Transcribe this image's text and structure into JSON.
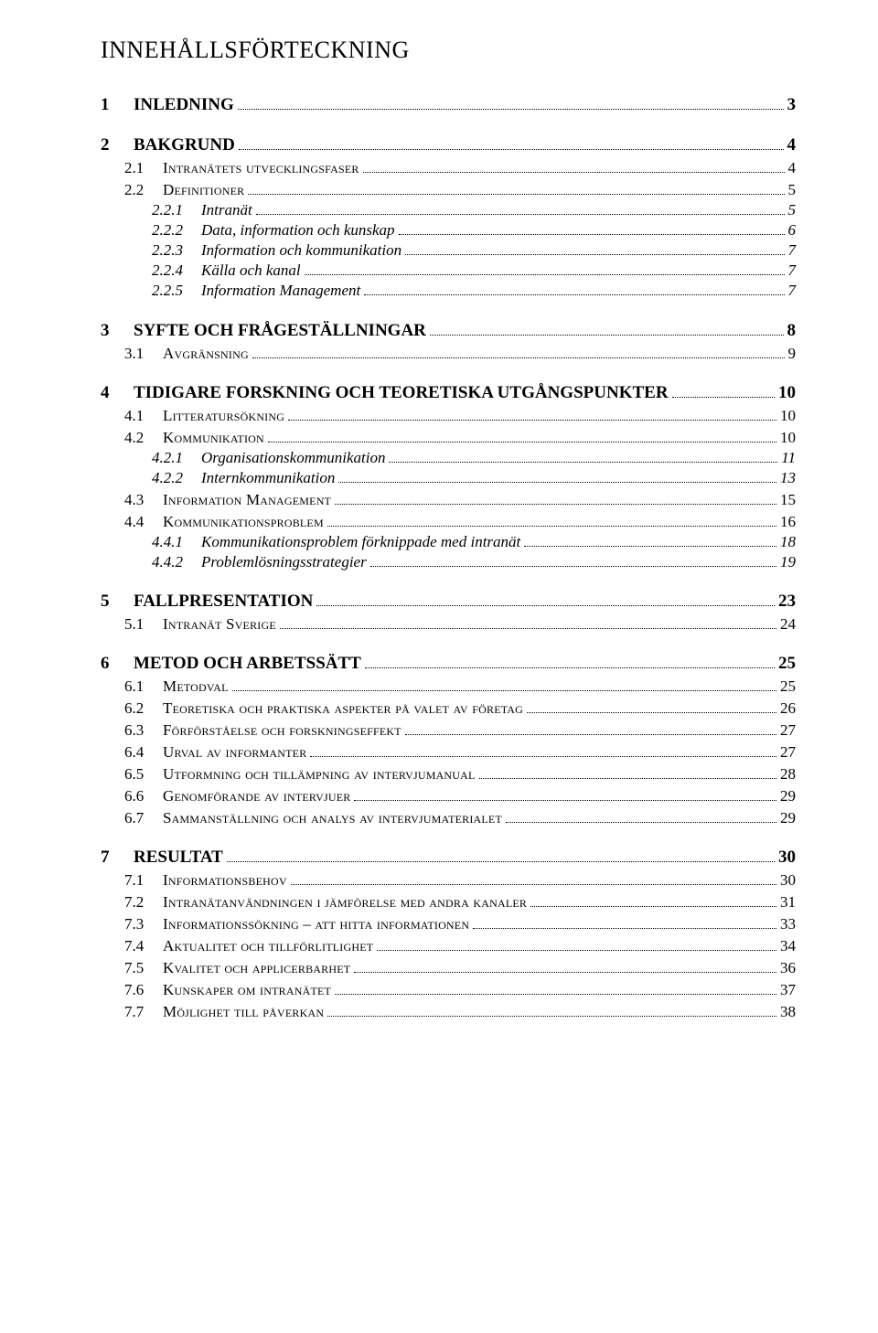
{
  "title": "INNEHÅLLSFÖRTECKNING",
  "toc": [
    {
      "level": 1,
      "num": "1",
      "label": "INLEDNING",
      "page": "3",
      "sc": false
    },
    {
      "level": 1,
      "num": "2",
      "label": "BAKGRUND",
      "page": "4",
      "sc": false
    },
    {
      "level": 2,
      "num": "2.1",
      "label": "Intranätets utvecklingsfaser",
      "page": "4",
      "sc": true
    },
    {
      "level": 2,
      "num": "2.2",
      "label": "Definitioner",
      "page": "5",
      "sc": true
    },
    {
      "level": 3,
      "num": "2.2.1",
      "label": "Intranät",
      "page": "5",
      "sc": false
    },
    {
      "level": 3,
      "num": "2.2.2",
      "label": "Data, information och kunskap",
      "page": "6",
      "sc": false
    },
    {
      "level": 3,
      "num": "2.2.3",
      "label": "Information och kommunikation",
      "page": "7",
      "sc": false
    },
    {
      "level": 3,
      "num": "2.2.4",
      "label": "Källa och kanal",
      "page": "7",
      "sc": false
    },
    {
      "level": 3,
      "num": "2.2.5",
      "label": "Information Management",
      "page": "7",
      "sc": false
    },
    {
      "level": 1,
      "num": "3",
      "label": "SYFTE OCH FRÅGESTÄLLNINGAR",
      "page": "8",
      "sc": false
    },
    {
      "level": 2,
      "num": "3.1",
      "label": "Avgränsning",
      "page": "9",
      "sc": true
    },
    {
      "level": 1,
      "num": "4",
      "label": "TIDIGARE FORSKNING OCH TEORETISKA UTGÅNGSPUNKTER",
      "page": "10",
      "sc": false
    },
    {
      "level": 2,
      "num": "4.1",
      "label": "Litteratursökning",
      "page": "10",
      "sc": true
    },
    {
      "level": 2,
      "num": "4.2",
      "label": "Kommunikation",
      "page": "10",
      "sc": true
    },
    {
      "level": 3,
      "num": "4.2.1",
      "label": "Organisationskommunikation",
      "page": "11",
      "sc": false
    },
    {
      "level": 3,
      "num": "4.2.2",
      "label": "Internkommunikation",
      "page": "13",
      "sc": false
    },
    {
      "level": 2,
      "num": "4.3",
      "label": "Information Management",
      "page": "15",
      "sc": true
    },
    {
      "level": 2,
      "num": "4.4",
      "label": "Kommunikationsproblem",
      "page": "16",
      "sc": true
    },
    {
      "level": 3,
      "num": "4.4.1",
      "label": "Kommunikationsproblem förknippade med intranät",
      "page": "18",
      "sc": false
    },
    {
      "level": 3,
      "num": "4.4.2",
      "label": "Problemlösningsstrategier",
      "page": "19",
      "sc": false
    },
    {
      "level": 1,
      "num": "5",
      "label": "FALLPRESENTATION",
      "page": "23",
      "sc": false
    },
    {
      "level": 2,
      "num": "5.1",
      "label": "Intranät Sverige",
      "page": "24",
      "sc": true
    },
    {
      "level": 1,
      "num": "6",
      "label": "METOD OCH ARBETSSÄTT",
      "page": "25",
      "sc": false
    },
    {
      "level": 2,
      "num": "6.1",
      "label": "Metodval",
      "page": "25",
      "sc": true
    },
    {
      "level": 2,
      "num": "6.2",
      "label": "Teoretiska och praktiska aspekter på valet av företag",
      "page": "26",
      "sc": true
    },
    {
      "level": 2,
      "num": "6.3",
      "label": "Förförståelse och forskningseffekt",
      "page": "27",
      "sc": true
    },
    {
      "level": 2,
      "num": "6.4",
      "label": "Urval av informanter",
      "page": "27",
      "sc": true
    },
    {
      "level": 2,
      "num": "6.5",
      "label": "Utformning och tillämpning av intervjumanual",
      "page": "28",
      "sc": true
    },
    {
      "level": 2,
      "num": "6.6",
      "label": "Genomförande av intervjuer",
      "page": "29",
      "sc": true
    },
    {
      "level": 2,
      "num": "6.7",
      "label": "Sammanställning och analys av intervjumaterialet",
      "page": "29",
      "sc": true
    },
    {
      "level": 1,
      "num": "7",
      "label": "RESULTAT",
      "page": "30",
      "sc": false
    },
    {
      "level": 2,
      "num": "7.1",
      "label": "Informationsbehov",
      "page": "30",
      "sc": true
    },
    {
      "level": 2,
      "num": "7.2",
      "label": "Intranätanvändningen i jämförelse med andra kanaler",
      "page": "31",
      "sc": true
    },
    {
      "level": 2,
      "num": "7.3",
      "label": "Informationssökning – att hitta informationen",
      "page": "33",
      "sc": true
    },
    {
      "level": 2,
      "num": "7.4",
      "label": "Aktualitet och tillförlitlighet",
      "page": "34",
      "sc": true
    },
    {
      "level": 2,
      "num": "7.5",
      "label": "Kvalitet och applicerbarhet",
      "page": "36",
      "sc": true
    },
    {
      "level": 2,
      "num": "7.6",
      "label": "Kunskaper om intranätet",
      "page": "37",
      "sc": true
    },
    {
      "level": 2,
      "num": "7.7",
      "label": "Möjlighet till påverkan",
      "page": "38",
      "sc": true
    }
  ]
}
